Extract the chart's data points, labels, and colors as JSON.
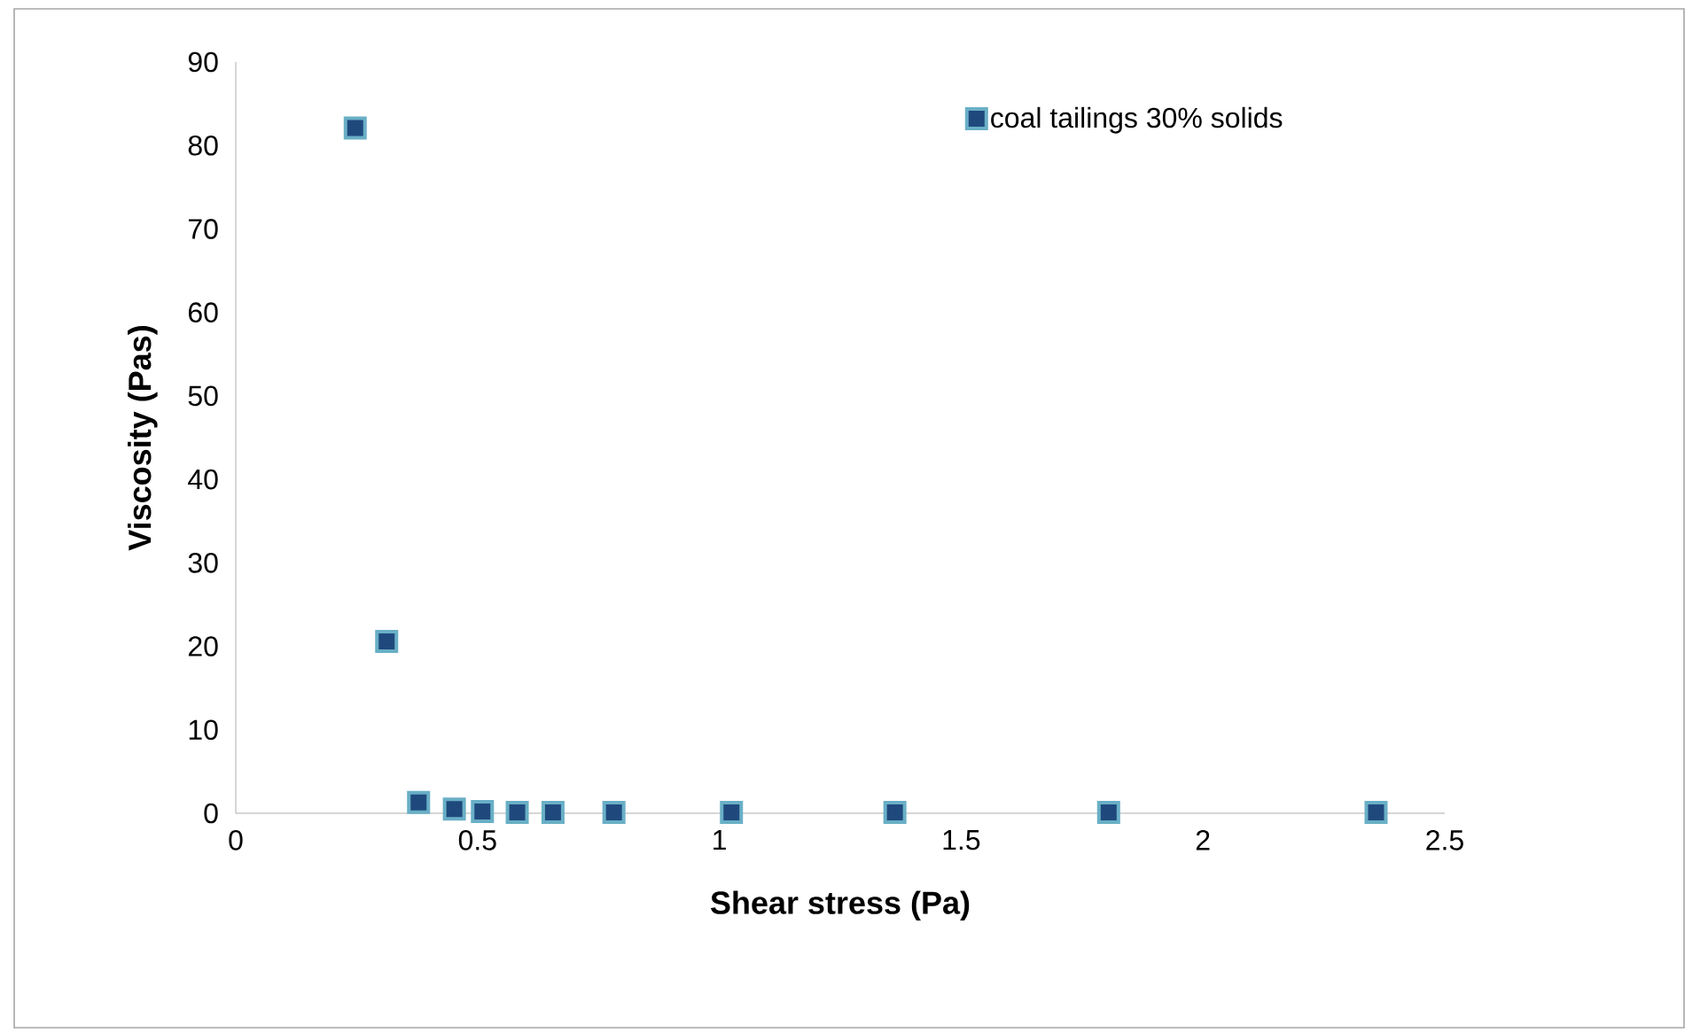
{
  "chart_data": {
    "type": "scatter",
    "xlabel": "Shear stress (Pa)",
    "ylabel": "Viscosity (Pas)",
    "xlim": [
      0,
      2.5
    ],
    "xticks": [
      0,
      0.5,
      1,
      1.5,
      2,
      2.5
    ],
    "ylim": [
      0,
      90
    ],
    "yticks": [
      0,
      10,
      20,
      30,
      40,
      50,
      60,
      70,
      80,
      90
    ],
    "grid": false,
    "legend": "top right",
    "marker": "square",
    "series": [
      {
        "name": "coal tailings 30% solids",
        "color": "#1f497d",
        "x": [
          0.247,
          0.312,
          0.378,
          0.452,
          0.51,
          0.582,
          0.656,
          0.782,
          1.025,
          1.363,
          1.805,
          2.358
        ],
        "values": [
          82.1,
          20.6,
          1.3,
          0.5,
          0.2,
          0.1,
          0.1,
          0.1,
          0.1,
          0.1,
          0.1,
          0.1
        ]
      }
    ]
  }
}
